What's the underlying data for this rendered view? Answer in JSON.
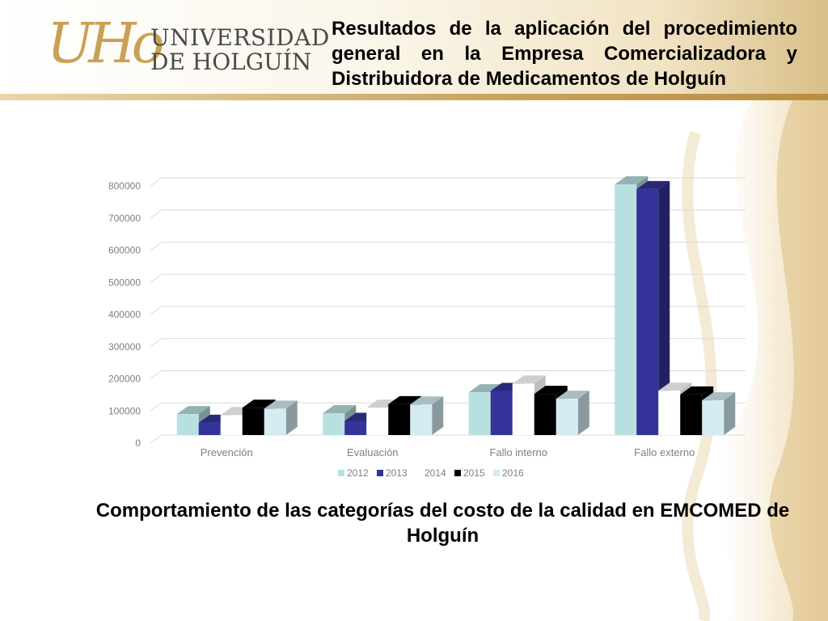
{
  "header": {
    "logo_mark": "UHo",
    "logo_line1": "UNIVERSIDAD",
    "logo_line2": "DE HOLGUÍN",
    "title": "Resultados de la aplicación del procedimiento general en la Empresa Comercializadora y Distribuidora de Medicamentos de Holguín"
  },
  "caption": "Comportamiento de las categorías del costo de la calidad en EMCOMED de Holguín",
  "colors": {
    "accent_gold": "#c9a155"
  },
  "chart_data": {
    "type": "bar",
    "title": "",
    "xlabel": "",
    "ylabel": "",
    "ylim": [
      0,
      800000
    ],
    "yticks": [
      0,
      100000,
      200000,
      300000,
      400000,
      500000,
      600000,
      700000,
      800000
    ],
    "ytick_labels": [
      "0",
      "100000",
      "200000",
      "300000",
      "400000",
      "500000",
      "600000",
      "700000",
      "800000"
    ],
    "categories": [
      "Prevención",
      "Evaluación",
      "Fallo interno",
      "Fallo externo"
    ],
    "legend_position": "bottom",
    "series": [
      {
        "name": "2012",
        "color": "#b8e0e0",
        "values": [
          65000,
          68000,
          133000,
          780000
        ]
      },
      {
        "name": "2013",
        "color": "#333399",
        "values": [
          38000,
          44000,
          137000,
          765000
        ]
      },
      {
        "name": "2014",
        "color": "#ffffff",
        "values": [
          62000,
          85000,
          160000,
          138000
        ]
      },
      {
        "name": "2015",
        "color": "#000000",
        "values": [
          85000,
          96000,
          128000,
          126000
        ]
      },
      {
        "name": "2016",
        "color": "#d5ecf2",
        "values": [
          82000,
          95000,
          113000,
          108000
        ]
      }
    ]
  }
}
